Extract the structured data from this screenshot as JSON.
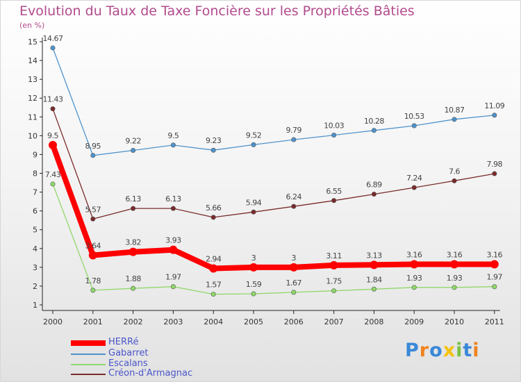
{
  "chart_data": {
    "type": "line",
    "title": "Evolution du Taux de Taxe Foncière sur les Propriétés Bâties",
    "subtitle": "(en %)",
    "xlabel": "",
    "ylabel": "",
    "ylim": [
      1,
      15
    ],
    "yticks": [
      1,
      2,
      3,
      4,
      5,
      6,
      7,
      8,
      9,
      10,
      11,
      12,
      13,
      14,
      15
    ],
    "categories": [
      "2000",
      "2001",
      "2002",
      "2003",
      "2004",
      "2005",
      "2006",
      "2007",
      "2008",
      "2009",
      "2010",
      "2011"
    ],
    "series": [
      {
        "name": "HERRé",
        "color": "#ff0000",
        "values": [
          9.5,
          3.64,
          3.82,
          3.93,
          2.94,
          3,
          3,
          3.11,
          3.13,
          3.16,
          3.16,
          3.16
        ],
        "labels": [
          "9.5",
          "3.64",
          "3.82",
          "3.93",
          "2.94",
          "3",
          "3",
          "3.11",
          "3.13",
          "3.16",
          "3.16",
          "3.16"
        ]
      },
      {
        "name": "Gabarret",
        "color": "#4f93cc",
        "values": [
          14.67,
          8.95,
          9.22,
          9.5,
          9.23,
          9.52,
          9.79,
          10.03,
          10.28,
          10.53,
          10.87,
          11.09
        ],
        "labels": [
          "14.67",
          "8.95",
          "9.22",
          "9.5",
          "9.23",
          "9.52",
          "9.79",
          "10.03",
          "10.28",
          "10.53",
          "10.87",
          "11.09"
        ]
      },
      {
        "name": "Escalans",
        "color": "#8fd86a",
        "values": [
          7.43,
          1.78,
          1.88,
          1.97,
          1.57,
          1.59,
          1.67,
          1.75,
          1.84,
          1.93,
          1.93,
          1.97
        ],
        "labels": [
          "7.43",
          "1.78",
          "1.88",
          "1.97",
          "1.57",
          "1.59",
          "1.67",
          "1.75",
          "1.84",
          "1.93",
          "1.93",
          "1.97"
        ]
      },
      {
        "name": "Créon-d'Armagnac",
        "color": "#7a2a2a",
        "values": [
          11.43,
          5.57,
          6.13,
          6.13,
          5.66,
          5.94,
          6.24,
          6.55,
          6.89,
          7.24,
          7.6,
          7.98
        ],
        "labels": [
          "11.43",
          "5.57",
          "6.13",
          "6.13",
          "5.66",
          "5.94",
          "6.24",
          "6.55",
          "6.89",
          "7.24",
          "7.6",
          "7.98"
        ]
      }
    ],
    "legend_position": "bottom-left",
    "grid": false
  },
  "logo": {
    "text": "Proxiti",
    "letters": [
      "P",
      "r",
      "o",
      "x",
      "i",
      "t",
      "i"
    ],
    "colors": [
      "#3a88d8",
      "#f0831e",
      "#3a88d8",
      "#f4c20d",
      "#7ac143",
      "#3a88d8",
      "#f0831e"
    ]
  }
}
